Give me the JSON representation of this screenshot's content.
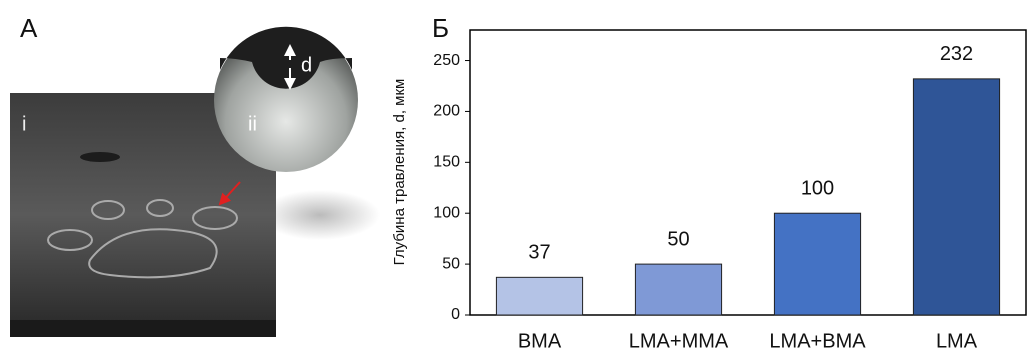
{
  "photo": {
    "label": "А",
    "regions": [
      "i",
      "ii"
    ],
    "dimension": "d"
  },
  "chart_data": {
    "type": "bar",
    "panel_label": "Б",
    "y_label": "Глубина травления, d, мкм",
    "categories": [
      "BMA",
      "LMA+MMA",
      "LMA+BMA",
      "LMA"
    ],
    "values": [
      37,
      50,
      100,
      232
    ],
    "colors": [
      "#b4c3e6",
      "#7f99d6",
      "#4472c4",
      "#2f5597"
    ],
    "ylim": [
      0,
      280
    ],
    "yticks": [
      0,
      50,
      100,
      150,
      200,
      250
    ],
    "grid": false
  }
}
